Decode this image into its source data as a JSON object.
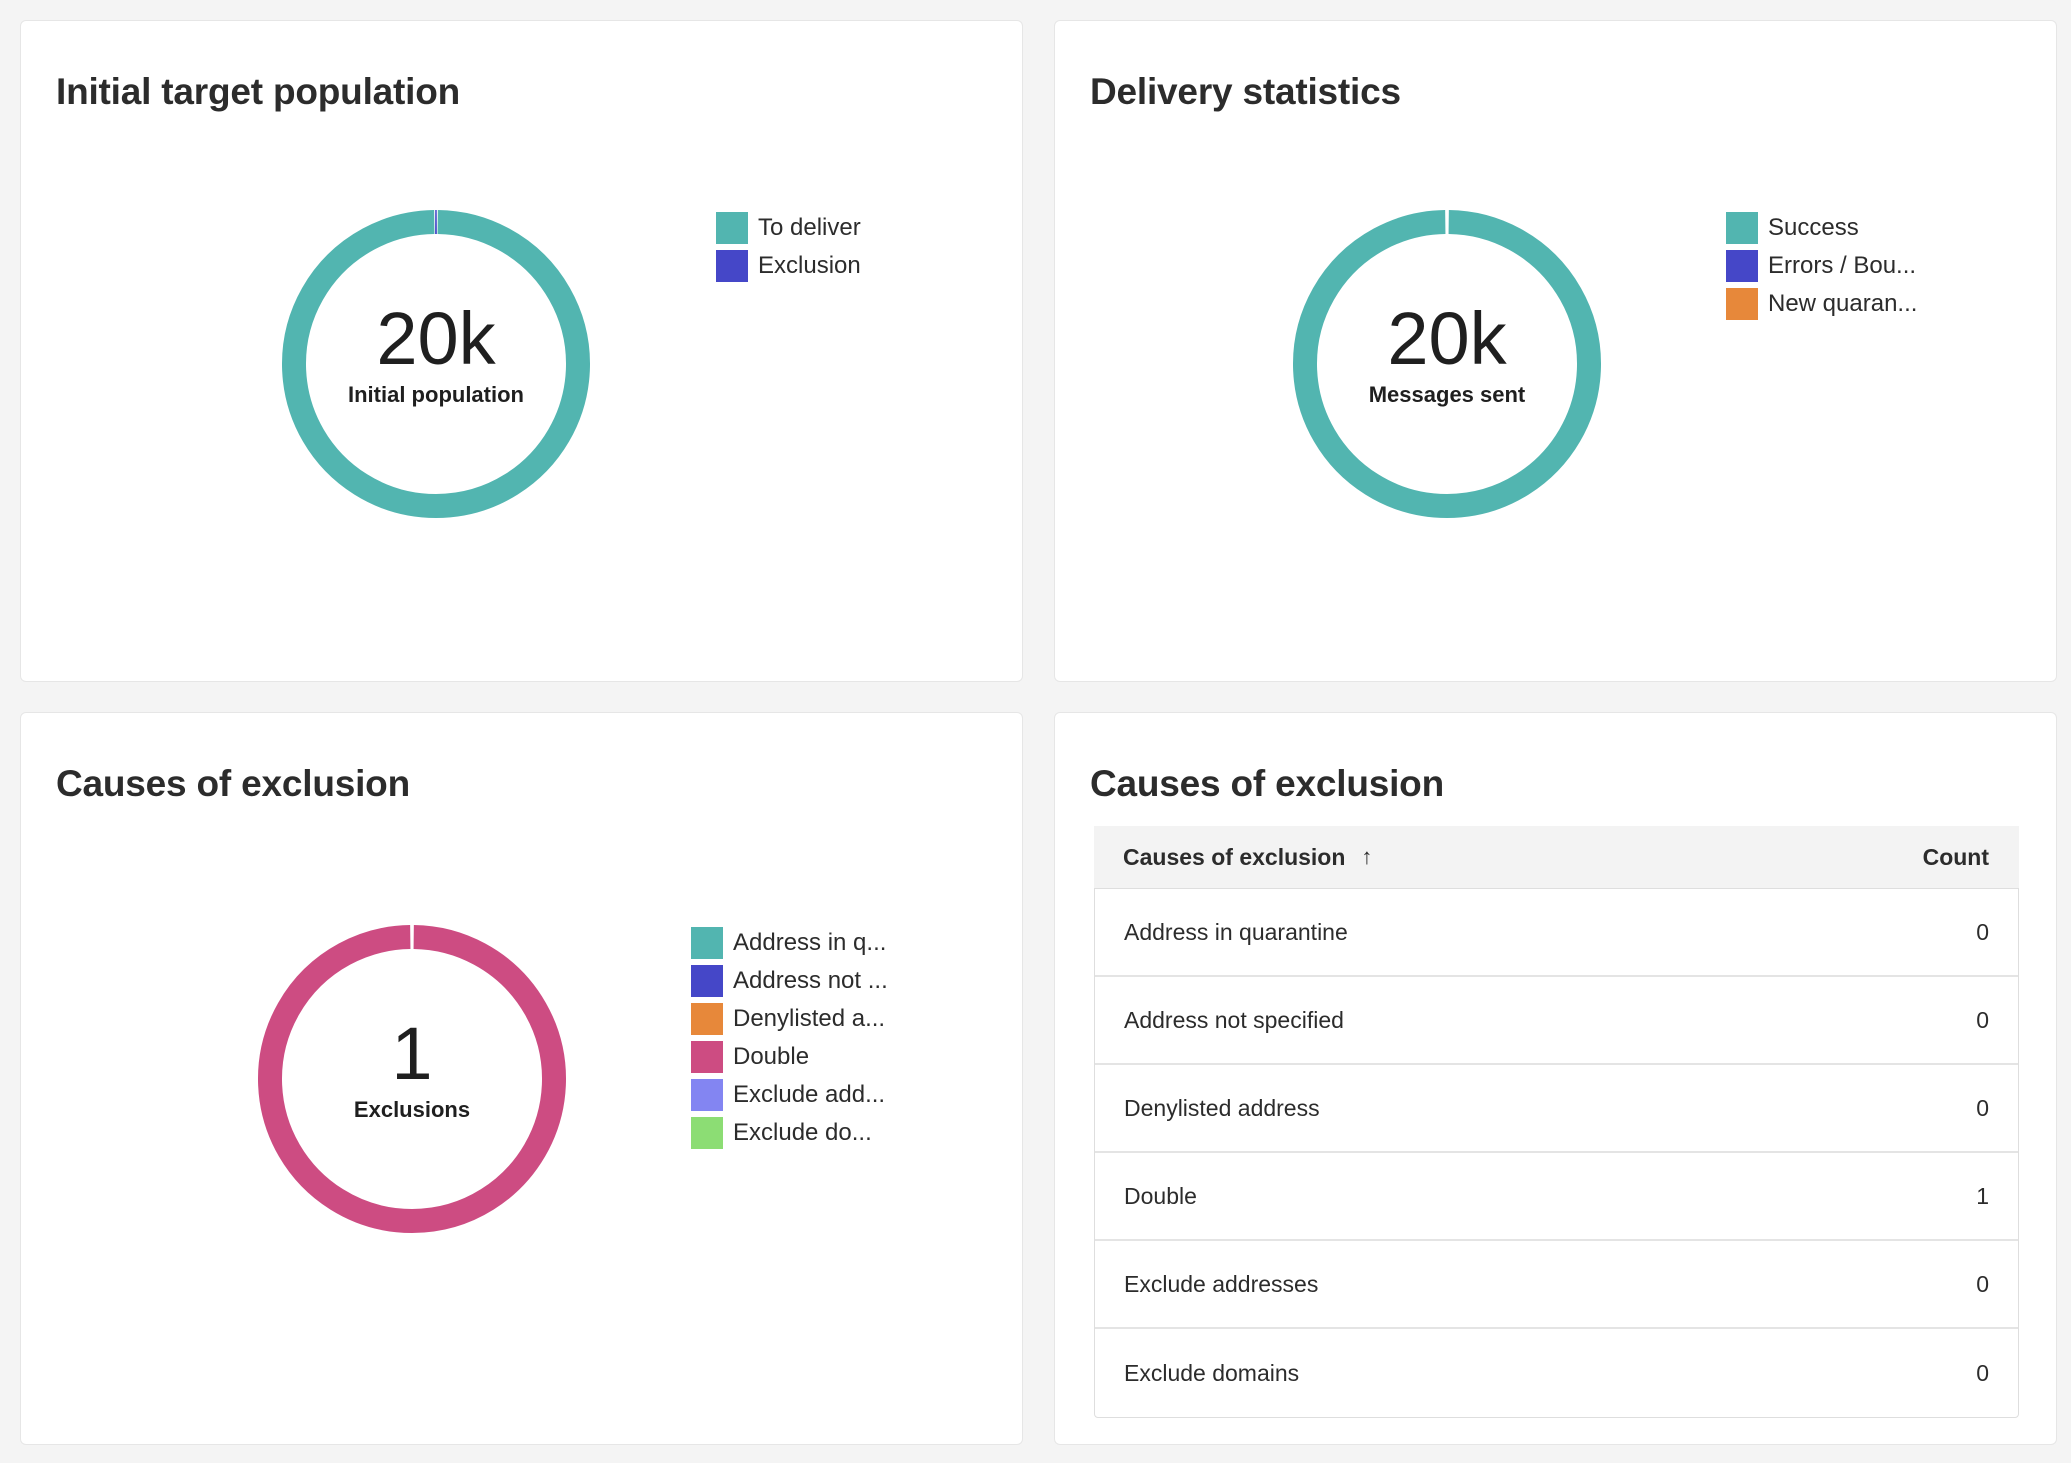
{
  "colors": {
    "teal": "#52b5b0",
    "blue": "#4547c8",
    "orange": "#e7883a",
    "pink": "#cd4c82",
    "lavender": "#8385f2",
    "green": "#8cdd74"
  },
  "cards": {
    "initial_target": {
      "title": "Initial target population",
      "center_value": "20k",
      "center_label": "Initial population",
      "legend": [
        {
          "label": "To deliver",
          "color": "#52b5b0"
        },
        {
          "label": "Exclusion",
          "color": "#4547c8"
        }
      ]
    },
    "delivery_stats": {
      "title": "Delivery statistics",
      "center_value": "20k",
      "center_label": "Messages sent",
      "legend": [
        {
          "label": "Success",
          "color": "#52b5b0"
        },
        {
          "label": "Errors / Bou...",
          "color": "#4547c8"
        },
        {
          "label": "New quaran...",
          "color": "#e7883a"
        }
      ]
    },
    "causes_chart": {
      "title": "Causes of exclusion",
      "center_value": "1",
      "center_label": "Exclusions",
      "legend": [
        {
          "label": "Address in q...",
          "color": "#52b5b0"
        },
        {
          "label": "Address not ...",
          "color": "#4547c8"
        },
        {
          "label": "Denylisted a...",
          "color": "#e7883a"
        },
        {
          "label": "Double",
          "color": "#cd4c82"
        },
        {
          "label": "Exclude add...",
          "color": "#8385f2"
        },
        {
          "label": "Exclude do...",
          "color": "#8cdd74"
        }
      ]
    },
    "causes_table": {
      "title": "Causes of exclusion",
      "columns": {
        "cause": "Causes of exclusion",
        "count": "Count"
      },
      "sort_icon": "arrow-up-icon",
      "rows": [
        {
          "cause": "Address in quarantine",
          "count": "0"
        },
        {
          "cause": "Address not specified",
          "count": "0"
        },
        {
          "cause": "Denylisted address",
          "count": "0"
        },
        {
          "cause": "Double",
          "count": "1"
        },
        {
          "cause": "Exclude addresses",
          "count": "0"
        },
        {
          "cause": "Exclude domains",
          "count": "0"
        }
      ]
    }
  },
  "chart_data": [
    {
      "type": "pie",
      "title": "Initial target population",
      "categories": [
        "To deliver",
        "Exclusion"
      ],
      "values": [
        20000,
        1
      ],
      "center_text": "20k",
      "legend_position": "right"
    },
    {
      "type": "pie",
      "title": "Delivery statistics",
      "categories": [
        "Success",
        "Errors / Bou...",
        "New quaran..."
      ],
      "values": [
        20000,
        0,
        0
      ],
      "center_text": "20k",
      "legend_position": "right"
    },
    {
      "type": "pie",
      "title": "Causes of exclusion",
      "categories": [
        "Address in q...",
        "Address not ...",
        "Denylisted a...",
        "Double",
        "Exclude add...",
        "Exclude do..."
      ],
      "values": [
        0,
        0,
        0,
        1,
        0,
        0
      ],
      "center_text": "1",
      "legend_position": "right"
    }
  ]
}
